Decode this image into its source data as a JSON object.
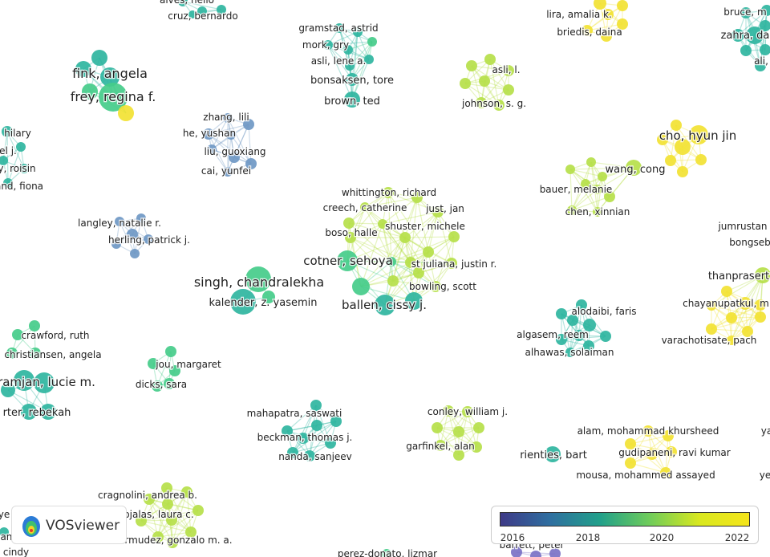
{
  "app": {
    "name": "VOSviewer"
  },
  "legend": {
    "ticks": [
      "2016",
      "2018",
      "2020",
      "2022"
    ],
    "colors": [
      "#3e3a87",
      "#2f6fa0",
      "#21a08a",
      "#6fcc5a",
      "#d9e81f",
      "#f5e51b"
    ]
  },
  "palette": {
    "blue": "#6f98c4",
    "teal": "#2fb5a0",
    "green": "#45cc8a",
    "lime": "#b6df4a",
    "yellow": "#f2e233",
    "purple": "#7a72c6",
    "edge": "#b8e6cf"
  },
  "labels": [
    {
      "text": "fink, angela"
    },
    {
      "text": "frey, regina f."
    },
    {
      "text": "cruz, bernardo"
    },
    {
      "text": "alves, helio"
    },
    {
      "text": "hilary"
    },
    {
      "text": "el j."
    },
    {
      "text": "y, roisin"
    },
    {
      "text": "and, fiona"
    },
    {
      "text": "zhang, lili"
    },
    {
      "text": "he, yushan"
    },
    {
      "text": "liu, guoxiang"
    },
    {
      "text": "cai, yunfei"
    },
    {
      "text": "langley, natalie r."
    },
    {
      "text": "herling, patrick j."
    },
    {
      "text": "gramstad, astrid"
    },
    {
      "text": "mork, gry"
    },
    {
      "text": "asli, lene a."
    },
    {
      "text": "bonsaksen, tore"
    },
    {
      "text": "brown, ted"
    },
    {
      "text": "asli, l."
    },
    {
      "text": "johnson, s. g."
    },
    {
      "text": "lira, amalia k."
    },
    {
      "text": "briedis, daina"
    },
    {
      "text": "bruce, m"
    },
    {
      "text": "zahra, da"
    },
    {
      "text": "ali, "
    },
    {
      "text": "cho, hyun jin"
    },
    {
      "text": "wang, cong"
    },
    {
      "text": "bauer, melanie"
    },
    {
      "text": "chen, xinnian"
    },
    {
      "text": "jumrustan"
    },
    {
      "text": "bongseb"
    },
    {
      "text": "thanprasert"
    },
    {
      "text": "chayanupatkul, m"
    },
    {
      "text": "varachotisate, pach"
    },
    {
      "text": "whittington, richard"
    },
    {
      "text": "creech, catherine"
    },
    {
      "text": "just, jan"
    },
    {
      "text": "boso, halle"
    },
    {
      "text": "shuster, michele"
    },
    {
      "text": "cotner, sehoya"
    },
    {
      "text": "st juliana, justin r."
    },
    {
      "text": "bowling, scott"
    },
    {
      "text": "ballen, cissy j."
    },
    {
      "text": "singh, chandralekha"
    },
    {
      "text": "kalender, z. yasemin"
    },
    {
      "text": "alodaibi, faris"
    },
    {
      "text": "algasem, reem"
    },
    {
      "text": "alhawas, solaiman"
    },
    {
      "text": "crawford, ruth"
    },
    {
      "text": "christiansen, angela"
    },
    {
      "text": "ramjan, lucie m."
    },
    {
      "text": "rter, rebekah"
    },
    {
      "text": "jou, margaret"
    },
    {
      "text": "dicks, sara"
    },
    {
      "text": "mahapatra, saswati"
    },
    {
      "text": "beckman, thomas j."
    },
    {
      "text": "nanda, sanjeev"
    },
    {
      "text": "conley, william j."
    },
    {
      "text": "garfinkel, alan"
    },
    {
      "text": "rienties, bart"
    },
    {
      "text": "alam, mohammad khursheed"
    },
    {
      "text": "gudipaneni, ravi kumar"
    },
    {
      "text": "mousa, mohammed assayed"
    },
    {
      "text": "cragnolini, andrea b."
    },
    {
      "text": "ojalas, laura c."
    },
    {
      "text": "bermudez, gonzalo m. a."
    },
    {
      "text": "perez-donato, lizmar"
    },
    {
      "text": "barrett, peter"
    },
    {
      "text": "ye"
    },
    {
      "text": "ya"
    },
    {
      "text": "ye"
    },
    {
      "text": "cindy"
    },
    {
      "text": "antelle"
    }
  ]
}
